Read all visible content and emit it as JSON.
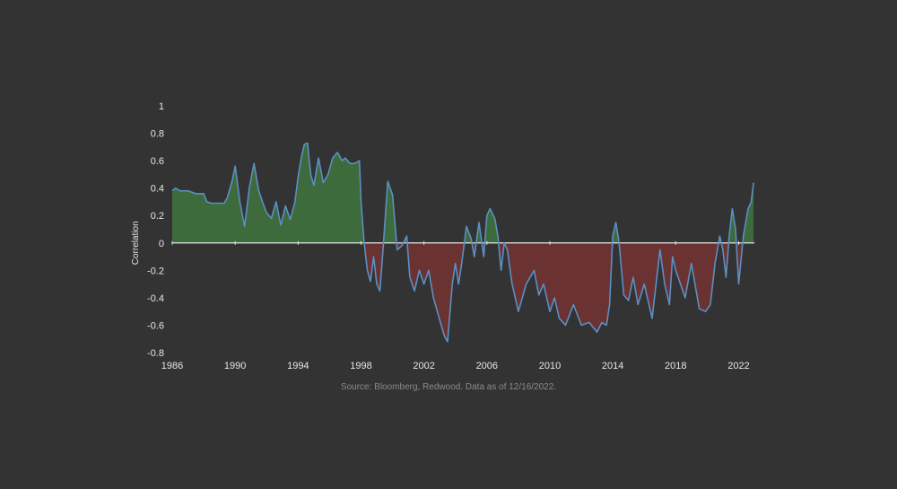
{
  "source_note": "Source: Bloomberg, Redwood. Data as of 12/16/2022.",
  "colors": {
    "background": "#333333",
    "line": "#5b8fc4",
    "positive_fill": "#3e6b3c",
    "negative_fill": "#6b3232",
    "zero_line": "#e8e8e8",
    "text": "#e6e6e6"
  },
  "chart_data": {
    "type": "area",
    "ylabel": "Correlation",
    "xlabel": "",
    "xlim": [
      1986,
      2023
    ],
    "ylim": [
      -0.8,
      1
    ],
    "x_ticks": [
      1986,
      1990,
      1994,
      1998,
      2002,
      2006,
      2010,
      2014,
      2018,
      2022
    ],
    "y_ticks": [
      1,
      0.8,
      0.6,
      0.4,
      0.2,
      0,
      -0.2,
      -0.4,
      -0.6,
      -0.8
    ],
    "grid": false,
    "series": [
      {
        "x": [
          1986.0,
          1986.2,
          1986.5,
          1987.0,
          1987.5,
          1988.0,
          1988.2,
          1988.5,
          1989.0,
          1989.3,
          1989.5,
          1989.8,
          1990.0,
          1990.3,
          1990.6,
          1990.9,
          1991.2,
          1991.5,
          1991.8,
          1992.0,
          1992.3,
          1992.6,
          1992.9,
          1993.2,
          1993.5,
          1993.8,
          1994.0,
          1994.2,
          1994.4,
          1994.6,
          1994.8,
          1995.0,
          1995.3,
          1995.6,
          1995.9,
          1996.2,
          1996.5,
          1996.8,
          1997.0,
          1997.3,
          1997.6,
          1997.9,
          1998.0,
          1998.2,
          1998.4,
          1998.6,
          1998.8,
          1999.0,
          1999.2,
          1999.4,
          1999.7,
          2000.0,
          2000.3,
          2000.6,
          2000.9,
          2001.1,
          2001.4,
          2001.7,
          2002.0,
          2002.3,
          2002.6,
          2002.9,
          2003.1,
          2003.3,
          2003.5,
          2003.8,
          2004.0,
          2004.2,
          2004.4,
          2004.7,
          2005.0,
          2005.2,
          2005.5,
          2005.8,
          2006.0,
          2006.2,
          2006.5,
          2006.7,
          2006.9,
          2007.1,
          2007.3,
          2007.6,
          2008.0,
          2008.5,
          2009.0,
          2009.3,
          2009.6,
          2010.0,
          2010.3,
          2010.6,
          2011.0,
          2011.5,
          2012.0,
          2012.5,
          2013.0,
          2013.3,
          2013.6,
          2013.8,
          2014.0,
          2014.2,
          2014.4,
          2014.7,
          2015.0,
          2015.3,
          2015.6,
          2016.0,
          2016.5,
          2017.0,
          2017.3,
          2017.6,
          2017.8,
          2018.0,
          2018.3,
          2018.6,
          2019.0,
          2019.5,
          2019.9,
          2020.2,
          2020.5,
          2020.8,
          2021.0,
          2021.2,
          2021.4,
          2021.6,
          2021.8,
          2022.0,
          2022.3,
          2022.6,
          2022.8,
          2022.95
        ],
        "y": [
          0.38,
          0.4,
          0.38,
          0.38,
          0.36,
          0.36,
          0.3,
          0.29,
          0.29,
          0.29,
          0.33,
          0.45,
          0.56,
          0.3,
          0.12,
          0.4,
          0.58,
          0.38,
          0.28,
          0.22,
          0.18,
          0.3,
          0.13,
          0.27,
          0.17,
          0.3,
          0.48,
          0.62,
          0.72,
          0.73,
          0.5,
          0.42,
          0.62,
          0.44,
          0.5,
          0.62,
          0.66,
          0.6,
          0.62,
          0.58,
          0.58,
          0.6,
          0.3,
          0.0,
          -0.2,
          -0.28,
          -0.1,
          -0.3,
          -0.35,
          -0.05,
          0.45,
          0.35,
          -0.05,
          -0.02,
          0.05,
          -0.25,
          -0.35,
          -0.2,
          -0.3,
          -0.2,
          -0.4,
          -0.52,
          -0.6,
          -0.68,
          -0.72,
          -0.3,
          -0.15,
          -0.3,
          -0.15,
          0.12,
          0.03,
          -0.1,
          0.15,
          -0.1,
          0.2,
          0.25,
          0.18,
          0.05,
          -0.2,
          0.0,
          -0.05,
          -0.3,
          -0.5,
          -0.3,
          -0.2,
          -0.38,
          -0.3,
          -0.5,
          -0.4,
          -0.55,
          -0.6,
          -0.45,
          -0.6,
          -0.58,
          -0.65,
          -0.58,
          -0.6,
          -0.45,
          0.05,
          0.15,
          0.0,
          -0.38,
          -0.42,
          -0.25,
          -0.45,
          -0.3,
          -0.55,
          -0.05,
          -0.3,
          -0.45,
          -0.1,
          -0.2,
          -0.3,
          -0.4,
          -0.15,
          -0.48,
          -0.5,
          -0.45,
          -0.15,
          0.05,
          -0.05,
          -0.25,
          0.05,
          0.25,
          0.1,
          -0.3,
          0.05,
          0.25,
          0.3,
          0.44
        ]
      }
    ]
  }
}
